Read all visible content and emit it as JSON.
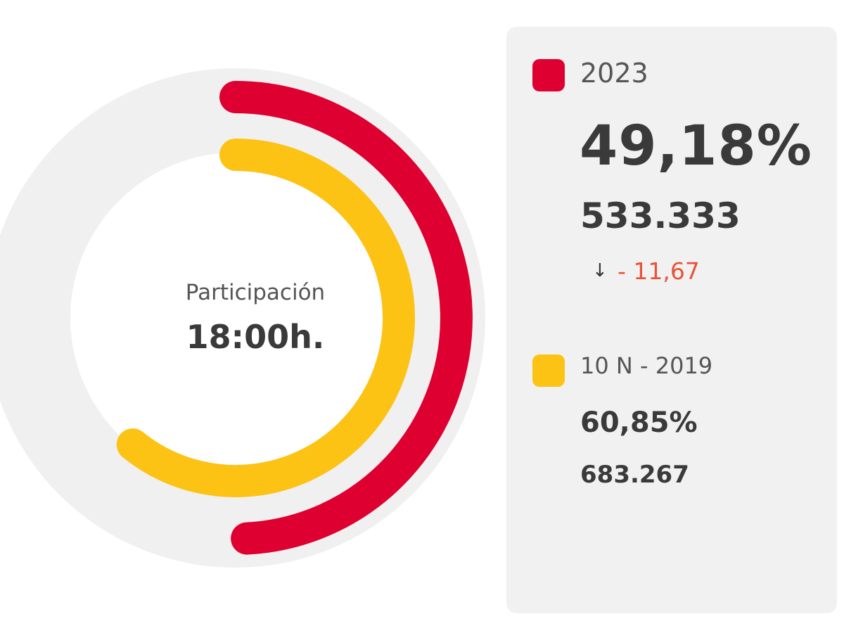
{
  "chart_data": {
    "type": "pie",
    "variant": "concentric-donut",
    "center": {
      "title": "Participación",
      "time": "18:00h."
    },
    "track_color": "#f0f0f0",
    "series": [
      {
        "name": "2023",
        "value": 49.18,
        "percent_label": "49,18%",
        "count": "533.333",
        "diff_arrow": "↓",
        "diff": "- 11,67",
        "color": "#de0030",
        "diff_color": "#e8533a"
      },
      {
        "name": "10 N - 2019",
        "value": 60.85,
        "percent_label": "60,85%",
        "count": "683.267",
        "color": "#fcc314"
      }
    ]
  }
}
